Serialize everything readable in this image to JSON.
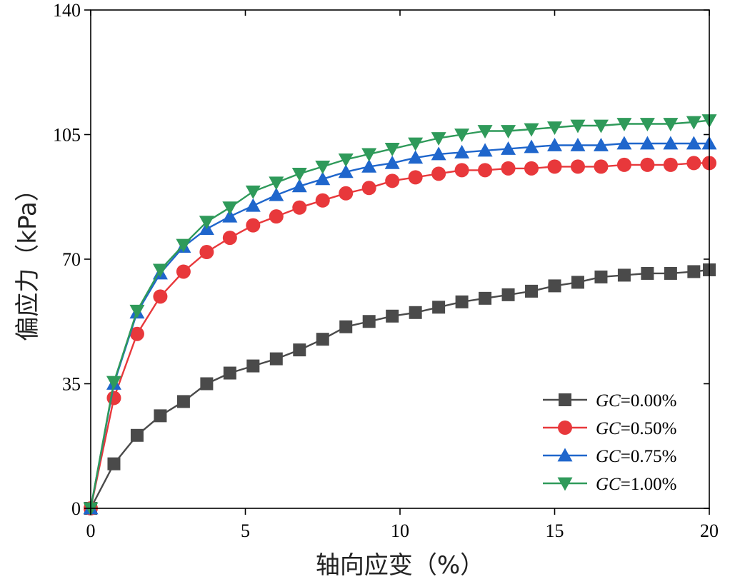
{
  "chart_data": {
    "type": "line",
    "title": "",
    "xlabel": "轴向应变（%）",
    "ylabel": "偏应力（kPa）",
    "xlim": [
      0,
      20
    ],
    "ylim": [
      0,
      140
    ],
    "xticks": [
      0,
      5,
      10,
      15,
      20
    ],
    "yticks": [
      0,
      35,
      70,
      105,
      140
    ],
    "grid": false,
    "legend_position": "bottom-right",
    "series": [
      {
        "name_var": "GC",
        "name_value": "=0.00%",
        "color": "#4a4a4a",
        "marker": "square",
        "x": [
          0,
          0.75,
          1.5,
          2.25,
          3.0,
          3.75,
          4.5,
          5.25,
          6.0,
          6.75,
          7.5,
          8.25,
          9.0,
          9.75,
          10.5,
          11.25,
          12.0,
          12.75,
          13.5,
          14.25,
          15.0,
          15.75,
          16.5,
          17.25,
          18.0,
          18.75,
          19.5,
          20.0
        ],
        "y": [
          0,
          12.5,
          20.5,
          26.0,
          30.0,
          35.0,
          38.0,
          40.0,
          42.0,
          44.5,
          47.5,
          51.0,
          52.5,
          54.0,
          55.0,
          56.5,
          58.0,
          59.0,
          60.0,
          61.0,
          62.5,
          63.5,
          65.0,
          65.5,
          66.0,
          66.0,
          66.5,
          67.0
        ]
      },
      {
        "name_var": "GC",
        "name_value": "=0.50%",
        "color": "#e8383b",
        "marker": "circle",
        "x": [
          0,
          0.75,
          1.5,
          2.25,
          3.0,
          3.75,
          4.5,
          5.25,
          6.0,
          6.75,
          7.5,
          8.25,
          9.0,
          9.75,
          10.5,
          11.25,
          12.0,
          12.75,
          13.5,
          14.25,
          15.0,
          15.75,
          16.5,
          17.25,
          18.0,
          18.75,
          19.5,
          20.0
        ],
        "y": [
          0,
          31.0,
          49.0,
          59.5,
          66.5,
          72.0,
          76.0,
          79.5,
          82.0,
          84.5,
          86.5,
          88.5,
          90.0,
          92.0,
          93.0,
          94.0,
          95.0,
          95.0,
          95.5,
          95.5,
          96.0,
          96.0,
          96.0,
          96.5,
          96.5,
          96.5,
          97.0,
          97.0
        ]
      },
      {
        "name_var": "GC",
        "name_value": "=0.75%",
        "color": "#1f66cc",
        "marker": "triangle-up",
        "x": [
          0,
          0.75,
          1.5,
          2.25,
          3.0,
          3.75,
          4.5,
          5.25,
          6.0,
          6.75,
          7.5,
          8.25,
          9.0,
          9.75,
          10.5,
          11.25,
          12.0,
          12.75,
          13.5,
          14.25,
          15.0,
          15.75,
          16.5,
          17.25,
          18.0,
          18.75,
          19.5,
          20.0
        ],
        "y": [
          0,
          35.0,
          55.0,
          66.0,
          73.5,
          78.5,
          82.0,
          85.0,
          88.0,
          90.5,
          92.5,
          94.5,
          96.0,
          97.0,
          98.5,
          99.5,
          100.0,
          100.5,
          101.0,
          101.5,
          102.0,
          102.0,
          102.0,
          102.5,
          102.5,
          102.5,
          102.5,
          102.5
        ]
      },
      {
        "name_var": "GC",
        "name_value": "=1.00%",
        "color": "#2f9a5a",
        "marker": "triangle-down",
        "x": [
          0,
          0.75,
          1.5,
          2.25,
          3.0,
          3.75,
          4.5,
          5.25,
          6.0,
          6.75,
          7.5,
          8.25,
          9.0,
          9.75,
          10.5,
          11.25,
          12.0,
          12.75,
          13.5,
          14.25,
          15.0,
          15.75,
          16.5,
          17.25,
          18.0,
          18.75,
          19.5,
          20.0
        ],
        "y": [
          0,
          35.5,
          55.5,
          67.0,
          74.0,
          80.5,
          84.5,
          89.0,
          91.5,
          94.0,
          96.0,
          98.0,
          99.5,
          101.0,
          102.5,
          104.0,
          105.0,
          106.0,
          106.0,
          106.5,
          107.0,
          107.5,
          107.5,
          108.0,
          108.0,
          108.0,
          108.5,
          109.0
        ]
      }
    ]
  }
}
